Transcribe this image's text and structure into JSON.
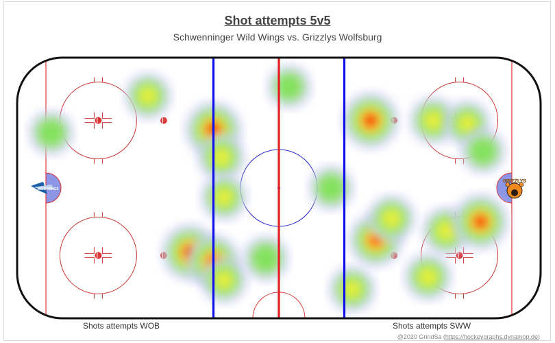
{
  "chart_data": {
    "type": "heatmap",
    "title": "Shot attempts 5v5",
    "subtitle": "Schwenninger Wild Wings vs. Grizzlys Wolfsburg",
    "xlabel": "",
    "ylabel": "",
    "rink": {
      "length_ft": 200,
      "width_ft": 85
    },
    "series": [
      {
        "name": "Shots attempts WOB",
        "hotspots": [
          {
            "x": -50,
            "y": 30,
            "intensity": 0.45
          },
          {
            "x": -25,
            "y": 19,
            "intensity": 1.0
          },
          {
            "x": -22,
            "y": 10,
            "intensity": 0.5
          },
          {
            "x": -21,
            "y": -3,
            "intensity": 0.45
          },
          {
            "x": -34,
            "y": -21,
            "intensity": 1.0
          },
          {
            "x": -25,
            "y": -24,
            "intensity": 0.85
          },
          {
            "x": -21,
            "y": -30,
            "intensity": 0.45
          },
          {
            "x": -5,
            "y": -23,
            "intensity": 0.4
          },
          {
            "x": -87,
            "y": 18,
            "intensity": 0.35
          },
          {
            "x": 4,
            "y": 33,
            "intensity": 0.3
          }
        ]
      },
      {
        "name": "Shots attempts SWW",
        "hotspots": [
          {
            "x": 35,
            "y": 22,
            "intensity": 1.0
          },
          {
            "x": 59,
            "y": 22,
            "intensity": 0.5
          },
          {
            "x": 72,
            "y": 21,
            "intensity": 0.45
          },
          {
            "x": 78,
            "y": 12,
            "intensity": 0.35
          },
          {
            "x": 20,
            "y": 0,
            "intensity": 0.35
          },
          {
            "x": 37,
            "y": -17,
            "intensity": 0.85
          },
          {
            "x": 43,
            "y": -10,
            "intensity": 0.5
          },
          {
            "x": 64,
            "y": -14,
            "intensity": 0.55
          },
          {
            "x": 77,
            "y": -11,
            "intensity": 0.95
          },
          {
            "x": 57,
            "y": -29,
            "intensity": 0.5
          },
          {
            "x": 28,
            "y": -33,
            "intensity": 0.45
          }
        ]
      }
    ],
    "legend": "none",
    "grid": false
  },
  "captions": {
    "left": "Shots attempts WOB",
    "right": "Shots attempts SWW"
  },
  "credit": {
    "prefix": "@2020 GrindSa (",
    "link": "https://hockeygraphs.dynamop.de",
    "suffix": ")"
  },
  "logos": {
    "left": {
      "text": "WILD WINGS",
      "icon": "wild-wings-logo"
    },
    "right": {
      "text": "GRIZZLYS",
      "icon": "grizzlys-logo"
    }
  },
  "colors": {
    "boards": "#111111",
    "red_line": "#e02020",
    "blue_line": "#1010ee",
    "thin_red": "#dd3333",
    "crease": "#8c95e6",
    "faceoff_circle": "#cc3333",
    "center_circle": "#2222cc"
  }
}
